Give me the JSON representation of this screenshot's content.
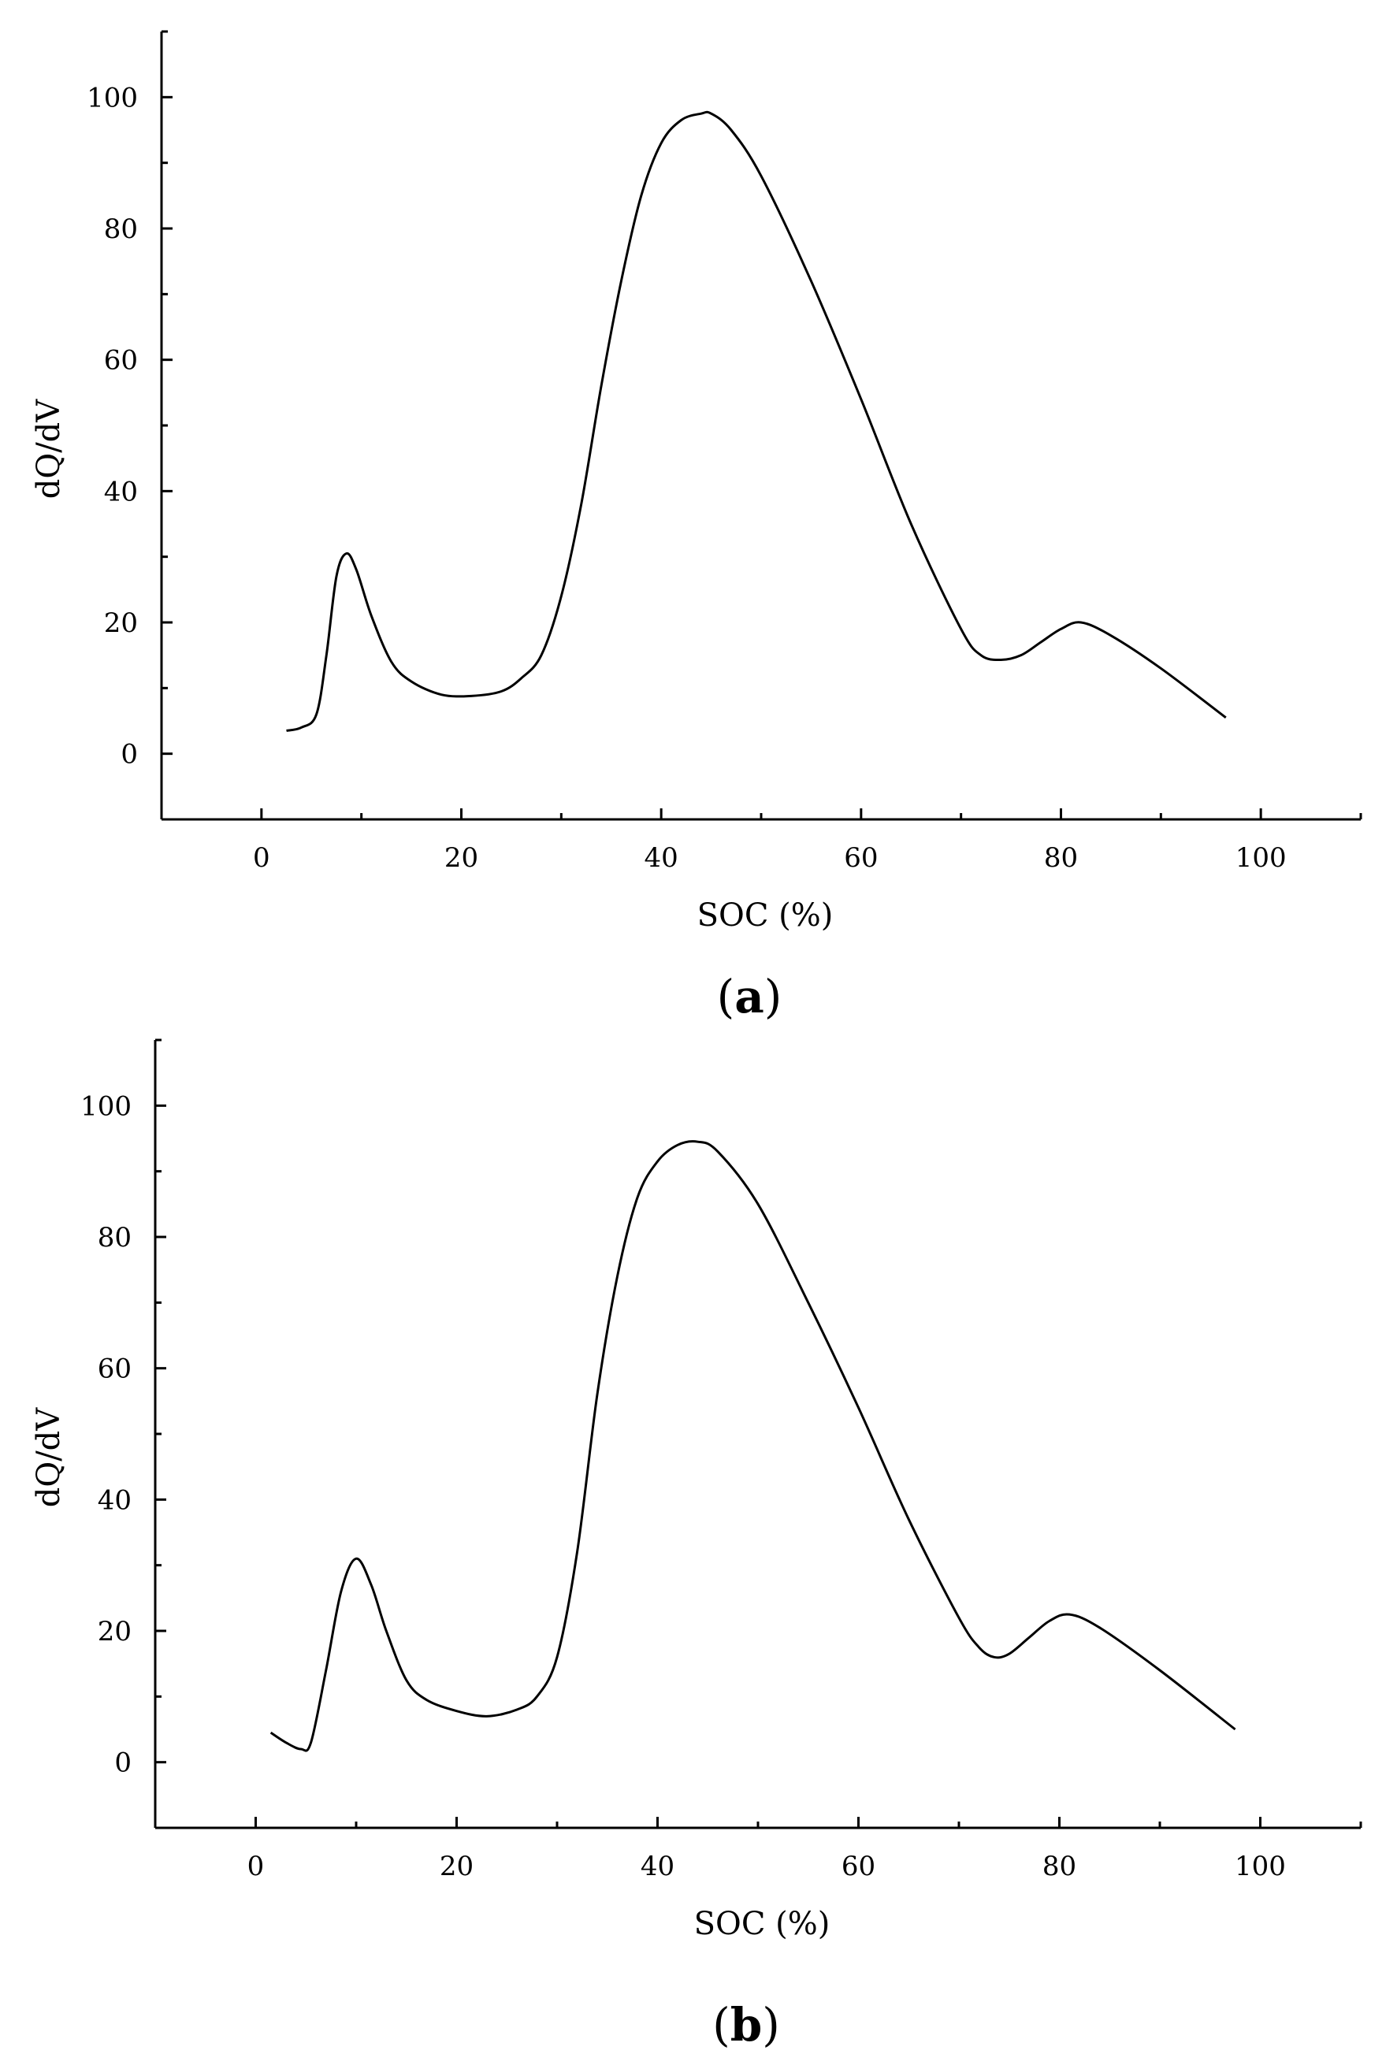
{
  "chart_data": [
    {
      "panel_label": "a",
      "type": "line",
      "xlabel": "SOC (%)",
      "ylabel": "dQ/dV",
      "xlim": [
        -10,
        110
      ],
      "ylim": [
        -10,
        110
      ],
      "x_ticks": [
        0,
        20,
        40,
        60,
        80,
        100
      ],
      "y_ticks": [
        0,
        20,
        40,
        60,
        80,
        100
      ],
      "x_tick_labels": [
        "0",
        "20",
        "40",
        "60",
        "80",
        "100"
      ],
      "y_tick_labels": [
        "0",
        "20",
        "40",
        "60",
        "80",
        "100"
      ],
      "grid": false,
      "series": [
        {
          "x": [
            2.5,
            4,
            5.5,
            6.5,
            7.5,
            8.5,
            9.5,
            11,
            13,
            15,
            18,
            21,
            24,
            26,
            28,
            30,
            32,
            34,
            36,
            38,
            40,
            42,
            44,
            45,
            47,
            50,
            55,
            60,
            65,
            70,
            72,
            74,
            76,
            78,
            80,
            82,
            85,
            90,
            96.5
          ],
          "y": [
            3.5,
            4,
            6,
            15,
            27,
            30.5,
            28,
            21,
            14,
            11,
            9,
            8.8,
            9.5,
            11.5,
            15,
            24,
            38,
            56,
            72,
            85,
            93,
            96.5,
            97.5,
            97.5,
            95,
            88,
            72,
            54,
            35,
            19,
            15,
            14.3,
            15,
            17,
            19,
            20,
            18,
            13,
            5.5
          ]
        }
      ]
    },
    {
      "panel_label": "b",
      "type": "line",
      "xlabel": "SOC (%)",
      "ylabel": "dQ/dV",
      "xlim": [
        -10,
        110
      ],
      "ylim": [
        -10,
        110
      ],
      "x_ticks": [
        0,
        20,
        40,
        60,
        80,
        100
      ],
      "y_ticks": [
        0,
        20,
        40,
        60,
        80,
        100
      ],
      "x_tick_labels": [
        "0",
        "20",
        "40",
        "60",
        "80",
        "100"
      ],
      "y_tick_labels": [
        "0",
        "20",
        "40",
        "60",
        "80",
        "100"
      ],
      "grid": false,
      "series": [
        {
          "x": [
            1.5,
            3,
            4.5,
            5.5,
            7,
            8.5,
            10,
            11.5,
            13,
            15,
            17,
            20,
            23,
            26,
            28,
            30,
            32,
            34,
            36,
            38,
            40,
            42,
            44,
            46,
            50,
            55,
            60,
            65,
            70,
            72,
            73.5,
            75,
            77,
            79,
            81,
            84,
            90,
            97.5
          ],
          "y": [
            4.5,
            3,
            2,
            3,
            14,
            26,
            31,
            27,
            20,
            12.5,
            9.5,
            7.8,
            7,
            8,
            10,
            16,
            32,
            56,
            74,
            86,
            91.5,
            94,
            94.5,
            93,
            85,
            70,
            54,
            37,
            22,
            17.5,
            16,
            16.5,
            19,
            21.5,
            22.5,
            20.5,
            14,
            5
          ]
        }
      ]
    }
  ]
}
